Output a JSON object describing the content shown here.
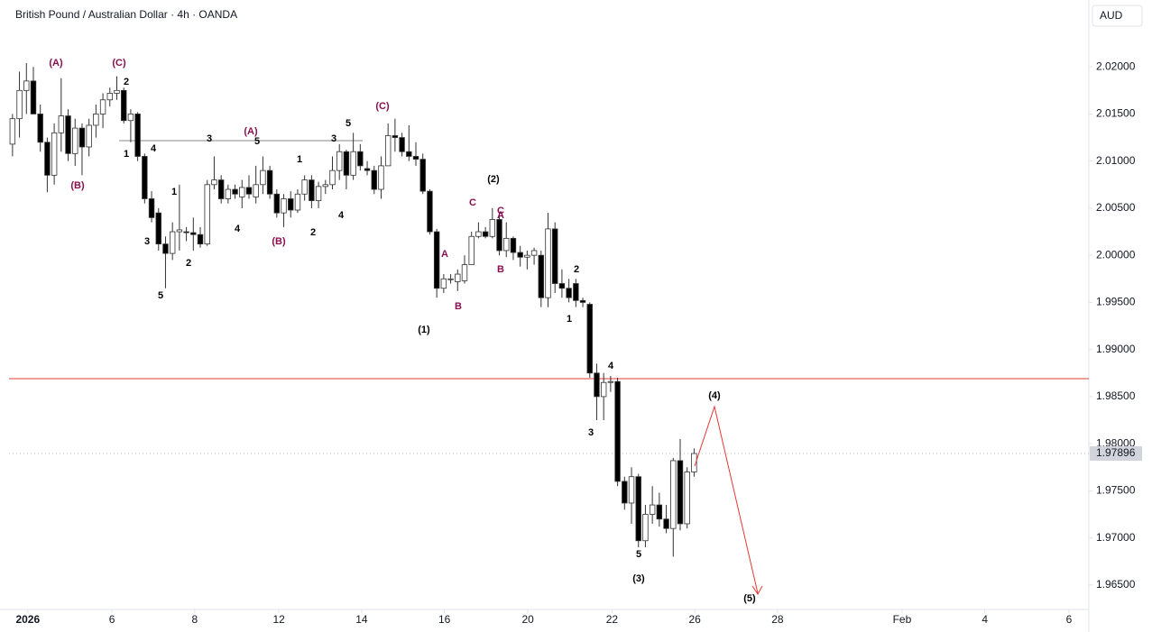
{
  "chart_data": {
    "type": "candlestick",
    "title": "British Pound / Australian Dollar · 4h · OANDA",
    "currency": "AUD",
    "up_color": "#ffffff",
    "down_color": "#000000",
    "wick_color": "#333333",
    "open": [
      2.0118,
      2.0145,
      2.0175,
      2.0185,
      2.015,
      2.012,
      2.0085,
      2.013,
      2.0148,
      2.0108,
      2.0135,
      2.0115,
      2.0138,
      2.015,
      2.0165,
      2.0172,
      2.0175,
      2.0143,
      2.015,
      2.0105,
      2.006,
      2.0045,
      2.0012,
      2.0002,
      2.0025,
      2.0025,
      2.0024,
      2.0022,
      2.0012,
      2.0075,
      2.008,
      2.006,
      2.007,
      2.0062,
      2.0072,
      2.0062,
      2.0075,
      2.009,
      2.0065,
      2.0045,
      2.006,
      2.0048,
      2.0065,
      2.008,
      2.0058,
      2.0073,
      2.0075,
      2.009,
      2.011,
      2.0085,
      2.011,
      2.0092,
      2.009,
      2.007,
      2.0095,
      2.0127,
      2.0125,
      2.011,
      2.0105,
      2.0102,
      2.0068,
      2.0025,
      1.9965,
      1.9975,
      1.9972,
      1.9973,
      1.999,
      2.002,
      2.0025,
      2.002,
      2.0038,
      2.0005,
      2.0018,
      2.0003,
      1.9998,
      2.0,
      2.0,
      1.9955,
      2.0028,
      1.997,
      1.9965,
      1.997,
      1.9952,
      1.9948,
      1.9875,
      1.985,
      1.9865,
      1.9866,
      1.976,
      1.9737,
      1.9765,
      1.9697,
      1.9725,
      1.9735,
      1.972,
      1.971,
      1.9782,
      1.9715,
      1.977
    ],
    "high": [
      2.015,
      2.0195,
      2.0204,
      2.02,
      2.016,
      2.0125,
      2.014,
      2.0188,
      2.0155,
      2.0145,
      2.014,
      2.0145,
      2.016,
      2.0172,
      2.0178,
      2.019,
      2.0178,
      2.0155,
      2.0152,
      2.0108,
      2.0068,
      2.005,
      2.002,
      2.0035,
      2.0075,
      2.003,
      2.004,
      2.003,
      2.008,
      2.0105,
      2.0085,
      2.0075,
      2.0075,
      2.008,
      2.0085,
      2.0095,
      2.0105,
      2.0095,
      2.007,
      2.0065,
      2.0068,
      2.007,
      2.0085,
      2.0085,
      2.0078,
      2.008,
      2.0105,
      2.0118,
      2.0112,
      2.013,
      2.0118,
      2.01,
      2.0095,
      2.0105,
      2.014,
      2.0145,
      2.013,
      2.0138,
      2.012,
      2.0108,
      2.007,
      2.0028,
      1.998,
      1.998,
      1.9985,
      2.0,
      2.0025,
      2.0035,
      2.003,
      2.005,
      2.0045,
      2.0035,
      2.002,
      2.001,
      2.0005,
      2.0008,
      2.0005,
      2.0045,
      2.0035,
      1.9985,
      1.9975,
      1.9975,
      1.9955,
      1.995,
      1.9885,
      1.9875,
      1.9872,
      1.987,
      1.9765,
      1.9775,
      1.9768,
      1.9735,
      1.9755,
      1.9748,
      1.9735,
      1.9785,
      1.9805,
      1.9775,
      1.9795
    ],
    "low": [
      2.0105,
      2.0125,
      2.015,
      2.015,
      2.011,
      2.0067,
      2.0075,
      2.011,
      2.01,
      2.0095,
      2.0085,
      2.0105,
      2.0125,
      2.0135,
      2.0158,
      2.0165,
      2.014,
      2.012,
      2.01,
      2.0055,
      2.0035,
      2.0005,
      1.9965,
      1.9995,
      2.0005,
      2.0015,
      2.0005,
      2.0008,
      2.001,
      2.007,
      2.0055,
      2.0055,
      2.006,
      2.005,
      2.006,
      2.0055,
      2.0065,
      2.006,
      2.004,
      2.003,
      2.004,
      2.0045,
      2.0058,
      2.005,
      2.005,
      2.0065,
      2.007,
      2.008,
      2.007,
      2.008,
      2.009,
      2.0085,
      2.0065,
      2.006,
      2.0095,
      2.011,
      2.0105,
      2.01,
      2.0095,
      2.0065,
      2.0022,
      1.9955,
      1.996,
      1.997,
      1.9962,
      1.997,
      1.999,
      2.0018,
      2.0018,
      2.0018,
      2.0,
      1.9998,
      1.9995,
      1.9988,
      1.9985,
      1.999,
      1.9945,
      1.9945,
      1.996,
      1.9955,
      1.995,
      1.9945,
      1.9945,
      1.987,
      1.9825,
      1.9825,
      1.9855,
      1.9755,
      1.973,
      1.9715,
      1.969,
      1.969,
      1.9715,
      1.9712,
      1.9705,
      1.968,
      1.9708,
      1.971,
      1.9765
    ],
    "close": [
      2.0145,
      2.0175,
      2.0185,
      2.015,
      2.012,
      2.0085,
      2.013,
      2.0148,
      2.0108,
      2.0135,
      2.0115,
      2.0138,
      2.015,
      2.0165,
      2.0172,
      2.0175,
      2.0143,
      2.015,
      2.0105,
      2.006,
      2.004,
      2.0012,
      2.0002,
      2.0025,
      2.0027,
      2.0024,
      2.0022,
      2.0012,
      2.0075,
      2.008,
      2.006,
      2.007,
      2.0065,
      2.0072,
      2.0065,
      2.0075,
      2.009,
      2.0065,
      2.0045,
      2.006,
      2.0048,
      2.0065,
      2.008,
      2.0058,
      2.0073,
      2.0075,
      2.009,
      2.011,
      2.0085,
      2.011,
      2.0095,
      2.009,
      2.007,
      2.0095,
      2.0127,
      2.0125,
      2.011,
      2.0105,
      2.0102,
      2.0068,
      2.0025,
      1.9965,
      1.9975,
      1.9975,
      1.998,
      1.999,
      2.002,
      2.0025,
      2.002,
      2.0038,
      2.0005,
      2.0018,
      2.0003,
      1.9998,
      2.0,
      2.0005,
      1.9955,
      2.0028,
      1.997,
      1.9965,
      1.9955,
      1.9952,
      1.995,
      1.9875,
      1.985,
      1.9865,
      1.9866,
      1.976,
      1.9737,
      1.9765,
      1.9697,
      1.9725,
      1.9735,
      1.972,
      1.971,
      1.9782,
      1.9715,
      1.977,
      1.97896
    ],
    "last_price": 1.97896,
    "xlim": [
      0,
      155
    ],
    "xticks": [
      {
        "value": 2.7,
        "label": "2026"
      },
      {
        "value": 14.8,
        "label": "6"
      },
      {
        "value": 26.7,
        "label": "8"
      },
      {
        "value": 38.8,
        "label": "12"
      },
      {
        "value": 50.7,
        "label": "14"
      },
      {
        "value": 62.6,
        "label": "16"
      },
      {
        "value": 74.6,
        "label": "20"
      },
      {
        "value": 86.7,
        "label": "22"
      },
      {
        "value": 98.6,
        "label": "26"
      },
      {
        "value": 110.5,
        "label": "28"
      },
      {
        "value": 128.4,
        "label": "Feb"
      },
      {
        "value": 140.3,
        "label": "4"
      },
      {
        "value": 152.4,
        "label": "6"
      }
    ],
    "ylim": [
      1.9625,
      2.0271
    ],
    "yticks": [
      {
        "value": 2.02,
        "label": "2.02000"
      },
      {
        "value": 2.015,
        "label": "2.01500"
      },
      {
        "value": 2.01,
        "label": "2.01000"
      },
      {
        "value": 2.005,
        "label": "2.00500"
      },
      {
        "value": 2.0,
        "label": "2.00000"
      },
      {
        "value": 1.995,
        "label": "1.99500"
      },
      {
        "value": 1.99,
        "label": "1.99000"
      },
      {
        "value": 1.985,
        "label": "1.98500"
      },
      {
        "value": 1.98,
        "label": "1.98000"
      },
      {
        "value": 1.975,
        "label": "1.97500"
      },
      {
        "value": 1.97,
        "label": "1.97000"
      },
      {
        "value": 1.965,
        "label": "1.96500"
      }
    ],
    "annotations": [
      {
        "text": "(A)",
        "color": "#880e4f"
      },
      {
        "text": "(C)",
        "color": "#880e4f"
      },
      {
        "text": "2",
        "color": "#000000"
      },
      {
        "text": "(B)",
        "color": "#880e4f"
      },
      {
        "text": "1",
        "color": "#000000"
      },
      {
        "text": "4",
        "color": "#000000"
      },
      {
        "text": "3",
        "color": "#000000"
      },
      {
        "text": "(A)",
        "color": "#880e4f"
      },
      {
        "text": "5",
        "color": "#000000"
      },
      {
        "text": "3",
        "color": "#000000"
      },
      {
        "text": "5",
        "color": "#000000"
      },
      {
        "text": "(C)",
        "color": "#880e4f"
      },
      {
        "text": "1",
        "color": "#000000"
      },
      {
        "text": "3",
        "color": "#000000"
      },
      {
        "text": "4",
        "color": "#000000"
      },
      {
        "text": "2",
        "color": "#000000"
      },
      {
        "text": "5",
        "color": "#000000"
      },
      {
        "text": "1",
        "color": "#000000"
      },
      {
        "text": "(B)",
        "color": "#880e4f"
      },
      {
        "text": "2",
        "color": "#000000"
      },
      {
        "text": "4",
        "color": "#000000"
      },
      {
        "text": "(2)",
        "color": "#000000"
      },
      {
        "text": "C",
        "color": "#880e4f"
      },
      {
        "text": "C",
        "color": "#880e4f"
      },
      {
        "text": "A",
        "color": "#880e4f"
      },
      {
        "text": "A",
        "color": "#880e4f"
      },
      {
        "text": "B",
        "color": "#880e4f"
      },
      {
        "text": "B",
        "color": "#880e4f"
      },
      {
        "text": "(1)",
        "color": "#000000"
      },
      {
        "text": "2",
        "color": "#000000"
      },
      {
        "text": "1",
        "color": "#000000"
      },
      {
        "text": "4",
        "color": "#000000"
      },
      {
        "text": "3",
        "color": "#000000"
      },
      {
        "text": "5",
        "color": "#000000"
      },
      {
        "text": "(3)",
        "color": "#000000"
      },
      {
        "text": "(4)",
        "color": "#000000"
      },
      {
        "text": "(5)",
        "color": "#000000"
      }
    ]
  }
}
